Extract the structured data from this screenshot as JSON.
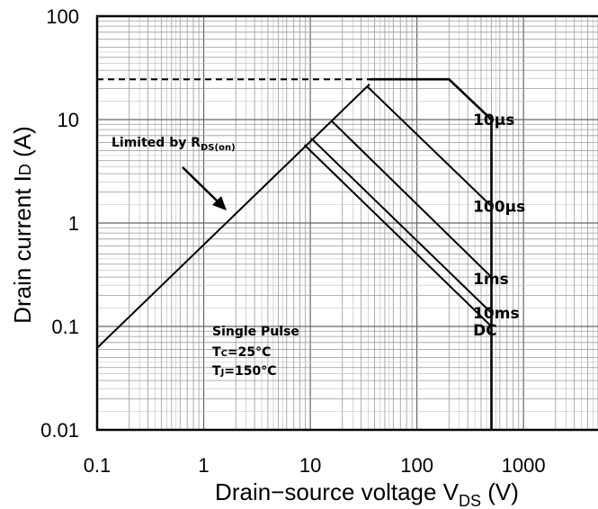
{
  "chart_data": {
    "type": "line",
    "title": "",
    "x_scale": "log",
    "y_scale": "log",
    "xlim": [
      0.1,
      5000
    ],
    "ylim": [
      0.01,
      100
    ],
    "grid": true,
    "xlabel": {
      "main": "Drain−source voltage V",
      "sub": "DS",
      "unit": " (V)"
    },
    "ylabel": {
      "main": "Drain current I",
      "sub": "D",
      "unit": " (A)"
    },
    "x_ticks": [
      {
        "value": 0.1,
        "label": "0.1"
      },
      {
        "value": 1,
        "label": "1"
      },
      {
        "value": 10,
        "label": "10"
      },
      {
        "value": 100,
        "label": "100"
      },
      {
        "value": 1000,
        "label": "1000"
      }
    ],
    "y_ticks": [
      {
        "value": 0.01,
        "label": "0.01"
      },
      {
        "value": 0.1,
        "label": "0.1"
      },
      {
        "value": 1,
        "label": "1"
      },
      {
        "value": 10,
        "label": "10"
      },
      {
        "value": 100,
        "label": "100"
      }
    ],
    "series": [
      {
        "name": "10µs",
        "points": [
          [
            36,
            24.5
          ],
          [
            200,
            24.5
          ],
          [
            500,
            10
          ],
          [
            500,
            0.01
          ]
        ]
      },
      {
        "name": "100µs",
        "points": [
          [
            34,
            21
          ],
          [
            500,
            1.45
          ]
        ]
      },
      {
        "name": "1ms",
        "points": [
          [
            16,
            9.6
          ],
          [
            500,
            0.3
          ]
        ]
      },
      {
        "name": "10ms",
        "points": [
          [
            10.2,
            6.6
          ],
          [
            500,
            0.135
          ]
        ]
      },
      {
        "name": "DC",
        "points": [
          [
            8.8,
            5.7
          ],
          [
            500,
            0.1
          ]
        ]
      }
    ],
    "rds_on_line": {
      "points": [
        [
          0.1,
          0.062
        ],
        [
          36,
          22
        ]
      ]
    },
    "current_limit_line": {
      "value": 24.5,
      "x_range": [
        0.1,
        36
      ]
    },
    "curve_labels": [
      {
        "text": "10µs",
        "x": 580,
        "y": 10
      },
      {
        "text": "100µs",
        "x": 580,
        "y": 1.45
      },
      {
        "text": "1ms",
        "x": 580,
        "y": 0.29
      },
      {
        "text": "10ms",
        "x": 580,
        "y": 0.135
      },
      {
        "text": "DC",
        "x": 580,
        "y": 0.092
      }
    ],
    "annotations": {
      "limited_by": {
        "main": "Limited by R",
        "sub": "DS(on)"
      },
      "single_pulse": "Single Pulse",
      "tc": {
        "main": "T",
        "sub": "C",
        "rest": "=25°C"
      },
      "tj": {
        "main": "T",
        "sub": "J",
        "rest": "=150°C"
      }
    }
  }
}
